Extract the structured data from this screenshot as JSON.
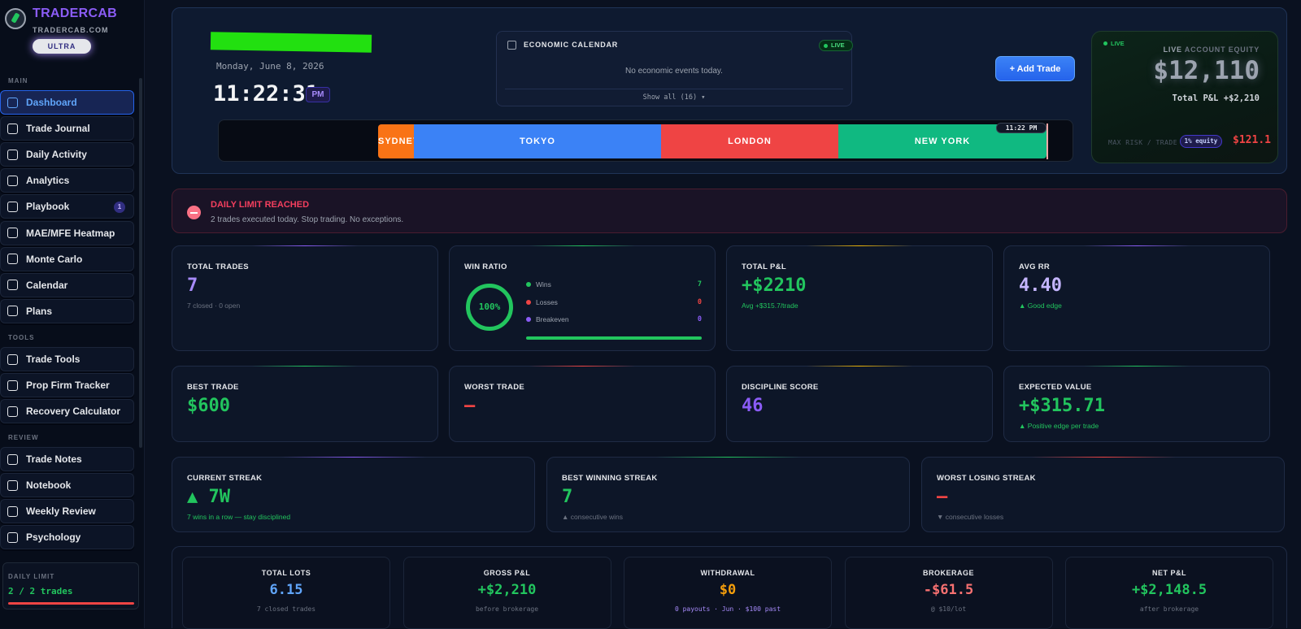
{
  "brand": {
    "name": "TRADERCAB",
    "site": "TRADERCAB.COM",
    "tier": "ULTRA"
  },
  "sidebar": {
    "sections": {
      "main": "MAIN",
      "tools": "TOOLS",
      "review": "REVIEW"
    },
    "main_items": [
      {
        "label": "Dashboard",
        "icon": "grid-icon",
        "active": true
      },
      {
        "label": "Trade Journal",
        "icon": "journal-icon"
      },
      {
        "label": "Daily Activity",
        "icon": "activity-icon"
      },
      {
        "label": "Analytics",
        "icon": "chart-icon"
      },
      {
        "label": "Playbook",
        "icon": "book-icon",
        "badge": "1"
      },
      {
        "label": "MAE/MFE Heatmap",
        "icon": "heatmap-icon"
      },
      {
        "label": "Monte Carlo",
        "icon": "dice-icon"
      },
      {
        "label": "Calendar",
        "icon": "calendar-icon"
      },
      {
        "label": "Plans",
        "icon": "target-icon"
      }
    ],
    "tools_items": [
      {
        "label": "Trade Tools",
        "icon": "wrench-icon"
      },
      {
        "label": "Prop Firm Tracker",
        "icon": "shield-icon"
      },
      {
        "label": "Recovery Calculator",
        "icon": "calculator-icon"
      }
    ],
    "review_items": [
      {
        "label": "Trade Notes",
        "icon": "pencil-icon"
      },
      {
        "label": "Notebook",
        "icon": "notebook-icon"
      },
      {
        "label": "Weekly Review",
        "icon": "clipboard-icon"
      },
      {
        "label": "Psychology",
        "icon": "brain-icon"
      }
    ],
    "daily_limit": {
      "label": "DAILY LIMIT",
      "value": "2 / 2 trades",
      "fraction": 1.0
    }
  },
  "header": {
    "date": "Monday, June 8, 2026",
    "time": "11:22:31",
    "ampm": "PM",
    "econ": {
      "title": "ECONOMIC CALENDAR",
      "live": "LIVE",
      "message": "No economic events today.",
      "show_all": "Show all (16) ▾"
    },
    "add_trade": "+ Add Trade",
    "sessions": [
      {
        "name": "SYDNEY",
        "color": "#f97316"
      },
      {
        "name": "TOKYO",
        "color": "#3b82f6"
      },
      {
        "name": "LONDON",
        "color": "#ef4444"
      },
      {
        "name": "NEW YORK",
        "color": "#10b981"
      }
    ],
    "now_label": "11:22 PM",
    "equity": {
      "live": "LIVE",
      "label_live": "LIVE",
      "label": "ACCOUNT EQUITY",
      "value": "$12,110",
      "total_pl": "Total P&L +$2,210",
      "max_risk": "MAX RISK / TRADE",
      "pct": "1% equity",
      "risk": "$121.1"
    }
  },
  "alert": {
    "title": "DAILY LIMIT REACHED",
    "subtitle": "2 trades executed today. Stop trading. No exceptions."
  },
  "stats_row1": [
    {
      "label": "TOTAL TRADES",
      "value": "7",
      "sub": "7 closed · 0 open",
      "color": "#a78bfa",
      "sub_color": "#6b7280"
    },
    {
      "label": "TOTAL P&L",
      "value": "+$2210",
      "sub": "Avg +$315.7/trade",
      "color": "#22c55e",
      "sub_color": "#22c55e"
    },
    {
      "label": "AVG RR",
      "value": "4.40",
      "sub": "▲ Good edge",
      "color": "#c4b5fd",
      "sub_color": "#22c55e"
    }
  ],
  "win_ratio": {
    "label": "WIN RATIO",
    "pct": "100%",
    "rows": [
      {
        "name": "Wins",
        "count": "7",
        "color": "#22c55e"
      },
      {
        "name": "Losses",
        "count": "0",
        "color": "#ef4444"
      },
      {
        "name": "Breakeven",
        "count": "0",
        "color": "#8b5cf6"
      }
    ]
  },
  "stats_row2": [
    {
      "label": "BEST TRADE",
      "value": "$600",
      "sub": "",
      "color": "#22c55e"
    },
    {
      "label": "WORST TRADE",
      "value": "—",
      "sub": "",
      "color": "#ef4444"
    },
    {
      "label": "DISCIPLINE SCORE",
      "value": "46",
      "sub": "",
      "color": "#8b5cf6"
    },
    {
      "label": "EXPECTED VALUE",
      "value": "+$315.71",
      "sub": "▲ Positive edge per trade",
      "color": "#22c55e",
      "sub_color": "#22c55e"
    }
  ],
  "streaks": [
    {
      "label": "CURRENT STREAK",
      "value": "▲ 7W",
      "sub": "7 wins in a row — stay disciplined",
      "color": "#22c55e",
      "sub_color": "#22c55e"
    },
    {
      "label": "BEST WINNING STREAK",
      "value": "7",
      "sub": "▲ consecutive wins",
      "color": "#22c55e",
      "sub_color": "#6b7280"
    },
    {
      "label": "WORST LOSING STREAK",
      "value": "—",
      "sub": "▼ consecutive losses",
      "color": "#ef4444",
      "sub_color": "#6b7280"
    }
  ],
  "footer": [
    {
      "label": "TOTAL LOTS",
      "value": "6.15",
      "sub": "7 closed trades",
      "color": "#60a5fa"
    },
    {
      "label": "GROSS P&L",
      "value": "+$2,210",
      "sub": "before brokerage",
      "color": "#22c55e"
    },
    {
      "label": "WITHDRAWAL",
      "value": "$0",
      "sub": "0 payouts · Jun · $100 past",
      "color": "#f59e0b",
      "sub_color": "#a78bfa"
    },
    {
      "label": "BROKERAGE",
      "value": "-$61.5",
      "sub": "@ $10/lot",
      "color": "#f87171"
    },
    {
      "label": "NET P&L",
      "value": "+$2,148.5",
      "sub": "after brokerage",
      "color": "#22c55e"
    }
  ]
}
